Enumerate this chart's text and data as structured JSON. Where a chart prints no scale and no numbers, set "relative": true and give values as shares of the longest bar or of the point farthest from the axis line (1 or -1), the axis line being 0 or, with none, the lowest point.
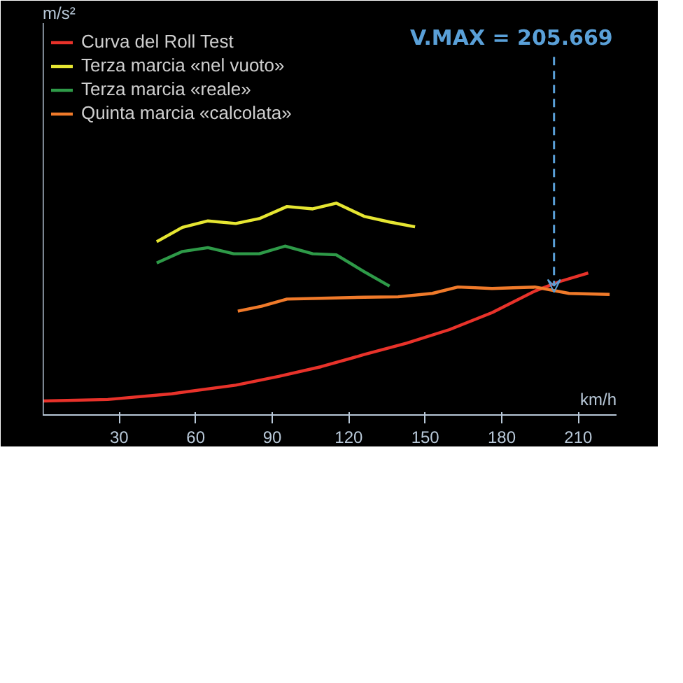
{
  "chart_data": {
    "type": "line",
    "relative": true,
    "xlabel": "km/h",
    "xlim": [
      0,
      225
    ],
    "xticks": [
      30,
      60,
      90,
      120,
      150,
      180,
      210
    ],
    "legend": "top left",
    "line_style": "solid",
    "annotations": [
      "m/s²",
      {
        "text": "V.MAX = 205.669",
        "x": 200.5,
        "y": 0.58
      }
    ],
    "series": [
      {
        "name": "Curva del Roll Test",
        "color": "#e8322a",
        "x": [
          0,
          25.5,
          50.6,
          75.7,
          92.5,
          109.2,
          126,
          142.7,
          159.5,
          176.2,
          193,
          203,
          213.9
        ],
        "values": [
          0.066,
          0.073,
          0.1,
          0.141,
          0.182,
          0.228,
          0.285,
          0.339,
          0.403,
          0.483,
          0.585,
          0.631,
          0.67
        ]
      },
      {
        "name": "Terza marcia «nel vuoto»",
        "color": "#e6e632",
        "x": [
          44.7,
          54.8,
          64.8,
          75.7,
          84.9,
          95.8,
          105.9,
          115.1,
          126,
          136,
          146
        ],
        "values": [
          0.818,
          0.886,
          0.916,
          0.904,
          0.927,
          0.984,
          0.973,
          1.0,
          0.938,
          0.911,
          0.888
        ]
      },
      {
        "name": "Terza marcia «reale»",
        "color": "#2e9a48",
        "x": [
          44.7,
          54.8,
          64.8,
          74.9,
          84.9,
          95,
          105.9,
          115.1,
          126,
          136
        ],
        "values": [
          0.718,
          0.772,
          0.79,
          0.761,
          0.761,
          0.797,
          0.761,
          0.756,
          0.677,
          0.608
        ]
      },
      {
        "name": "Quinta marcia «calcolata»",
        "color": "#f07a2a",
        "x": [
          76.5,
          85.8,
          95.8,
          109.2,
          126,
          139.4,
          152.8,
          162.8,
          176.2,
          193,
          206.4,
          222.3
        ],
        "values": [
          0.49,
          0.513,
          0.547,
          0.551,
          0.556,
          0.558,
          0.574,
          0.604,
          0.597,
          0.604,
          0.574,
          0.569
        ]
      }
    ]
  }
}
